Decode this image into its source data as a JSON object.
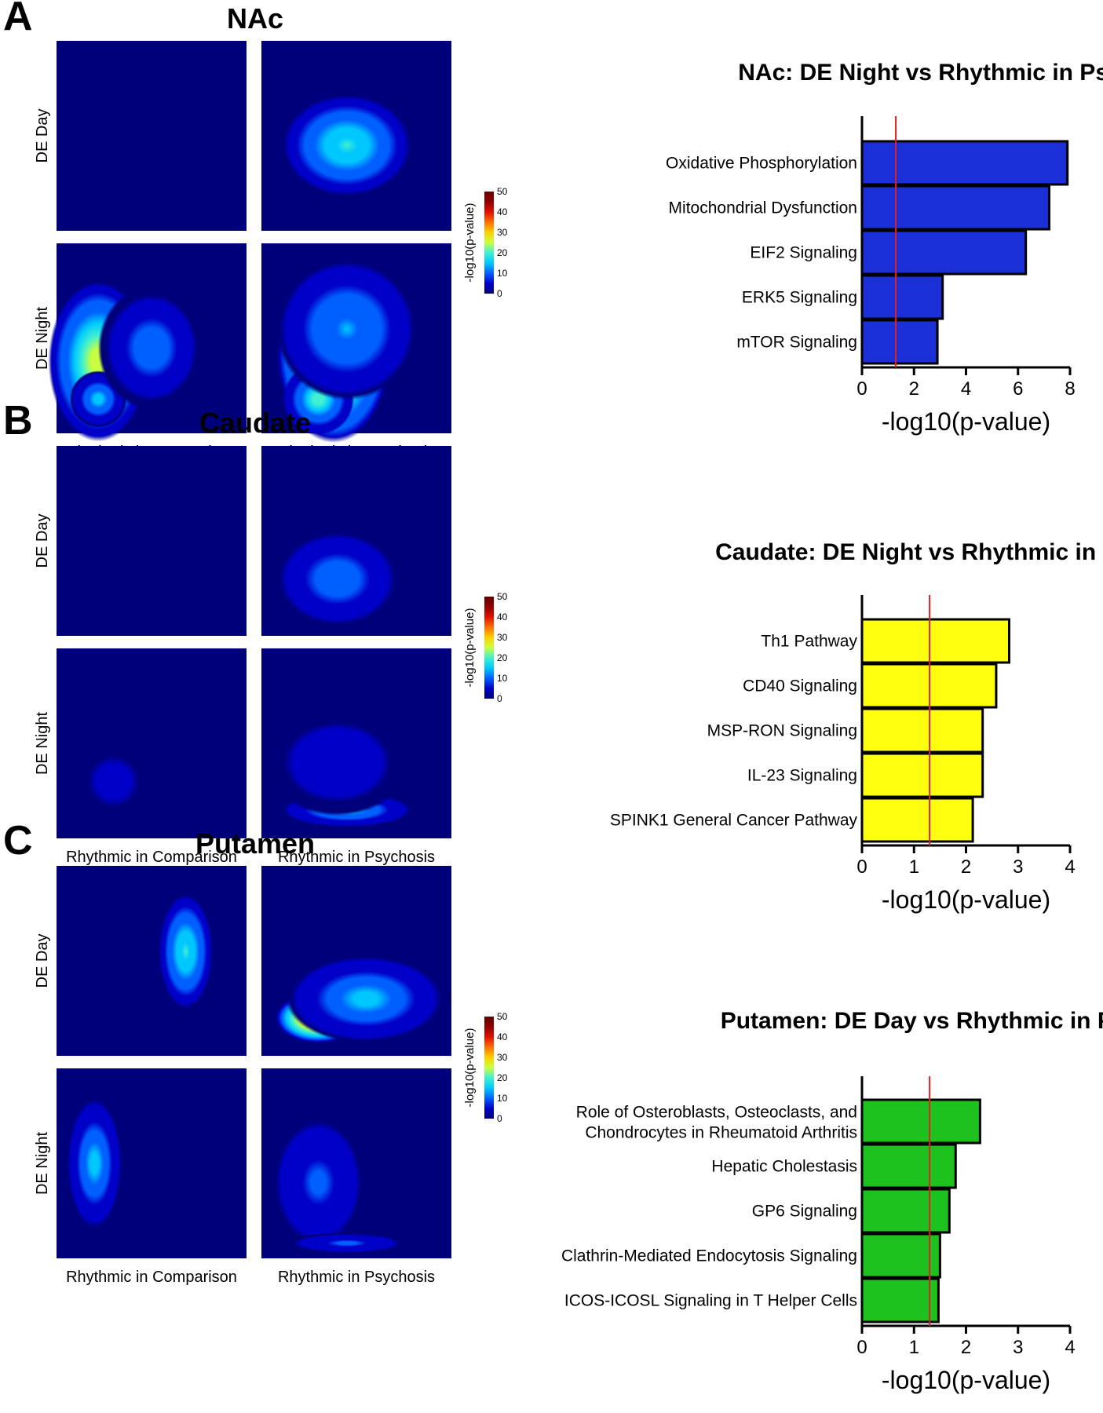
{
  "palette": {
    "heat_stops": [
      "#00007a",
      "#0000c8",
      "#0060ff",
      "#00c8ff",
      "#40f0d0",
      "#c8ff40",
      "#ffd000",
      "#ff7000",
      "#e01000",
      "#900000",
      "#600000"
    ],
    "threshold_line": "#e02020",
    "bar_colors": [
      "#1a2fd6",
      "#ffff10",
      "#1ec21e"
    ]
  },
  "chart_data": [
    {
      "panel": "A",
      "type": "heatmap",
      "region": "NAc",
      "row_labels": [
        "DE Day",
        "DE Night"
      ],
      "col_labels": [
        "Rhythmic in Comparison",
        "Rhythmic in Psychosis"
      ],
      "colorbar": {
        "label": "-log10(p-value)",
        "ticks": [
          "0",
          "10",
          "20",
          "30",
          "40",
          "50"
        ],
        "range": [
          0,
          50
        ]
      },
      "cells": [
        {
          "row": 0,
          "col": 0,
          "blobs": []
        },
        {
          "row": 0,
          "col": 1,
          "blobs": [
            {
              "cx": 0.45,
              "cy": 0.55,
              "rx": 0.38,
              "ry": 0.3,
              "peak": 20
            }
          ]
        },
        {
          "row": 1,
          "col": 0,
          "blobs": [
            {
              "cx": 0.22,
              "cy": 0.62,
              "rx": 0.28,
              "ry": 0.45,
              "peak": 27
            },
            {
              "cx": 0.22,
              "cy": 0.82,
              "rx": 0.16,
              "ry": 0.16,
              "peak": 16
            },
            {
              "cx": 0.5,
              "cy": 0.55,
              "rx": 0.3,
              "ry": 0.35,
              "peak": 11
            }
          ]
        },
        {
          "row": 1,
          "col": 1,
          "blobs": [
            {
              "cx": 0.38,
              "cy": 0.58,
              "rx": 0.32,
              "ry": 0.5,
              "peak": 38
            },
            {
              "cx": 0.3,
              "cy": 0.82,
              "rx": 0.2,
              "ry": 0.2,
              "peak": 22
            },
            {
              "cx": 0.45,
              "cy": 0.45,
              "rx": 0.4,
              "ry": 0.4,
              "peak": 14
            }
          ]
        }
      ]
    },
    {
      "panel": "A",
      "type": "bar",
      "orientation": "horizontal",
      "title": "NAc: DE Night vs Rhythmic in Psychosis",
      "categories": [
        "Oxidative Phosphorylation",
        "Mitochondrial Dysfunction",
        "EIF2 Signaling",
        "ERK5 Signaling",
        "mTOR Signaling"
      ],
      "values": [
        7.9,
        7.2,
        6.3,
        3.1,
        2.9
      ],
      "xlim": [
        0,
        8
      ],
      "xticks": [
        "0",
        "2",
        "4",
        "6",
        "8"
      ],
      "xlabel": "-log10(p-value)",
      "threshold": 1.3
    },
    {
      "panel": "B",
      "type": "heatmap",
      "region": "Caudate",
      "row_labels": [
        "DE Day",
        "DE Night"
      ],
      "col_labels": [
        "Rhythmic in Comparison",
        "Rhythmic in Psychosis"
      ],
      "colorbar": {
        "label": "-log10(p-value)",
        "ticks": [
          "0",
          "10",
          "20",
          "30",
          "40",
          "50"
        ],
        "range": [
          0,
          50
        ]
      },
      "cells": [
        {
          "row": 0,
          "col": 0,
          "blobs": []
        },
        {
          "row": 0,
          "col": 1,
          "blobs": [
            {
              "cx": 0.4,
              "cy": 0.7,
              "rx": 0.38,
              "ry": 0.3,
              "peak": 11
            }
          ]
        },
        {
          "row": 1,
          "col": 0,
          "blobs": [
            {
              "cx": 0.3,
              "cy": 0.7,
              "rx": 0.3,
              "ry": 0.3,
              "peak": 4
            }
          ]
        },
        {
          "row": 1,
          "col": 1,
          "blobs": [
            {
              "cx": 0.45,
              "cy": 0.85,
              "rx": 0.38,
              "ry": 0.1,
              "peak": 16
            },
            {
              "cx": 0.4,
              "cy": 0.6,
              "rx": 0.4,
              "ry": 0.3,
              "peak": 7
            }
          ]
        }
      ]
    },
    {
      "panel": "B",
      "type": "bar",
      "orientation": "horizontal",
      "title": "Caudate: DE Night vs Rhythmic in Psychosis",
      "categories": [
        "Th1 Pathway",
        "CD40 Signaling",
        "MSP-RON Signaling",
        "IL-23 Signaling",
        "SPINK1 General Cancer Pathway"
      ],
      "values": [
        2.83,
        2.58,
        2.32,
        2.32,
        2.13
      ],
      "xlim": [
        0,
        4
      ],
      "xticks": [
        "0",
        "1",
        "2",
        "3",
        "4"
      ],
      "xlabel": "-log10(p-value)",
      "threshold": 1.3
    },
    {
      "panel": "C",
      "type": "heatmap",
      "region": "Putamen",
      "row_labels": [
        "DE Day",
        "DE Night"
      ],
      "col_labels": [
        "Rhythmic in Comparison",
        "Rhythmic in Psychosis"
      ],
      "colorbar": {
        "label": "-log10(p-value)",
        "ticks": [
          "0",
          "10",
          "20",
          "30",
          "40",
          "50"
        ],
        "range": [
          0,
          50
        ]
      },
      "cells": [
        {
          "row": 0,
          "col": 0,
          "blobs": [
            {
              "cx": 0.68,
              "cy": 0.45,
              "rx": 0.16,
              "ry": 0.34,
              "peak": 20
            }
          ]
        },
        {
          "row": 0,
          "col": 1,
          "blobs": [
            {
              "cx": 0.3,
              "cy": 0.8,
              "rx": 0.24,
              "ry": 0.14,
              "peak": 46
            },
            {
              "cx": 0.55,
              "cy": 0.7,
              "rx": 0.45,
              "ry": 0.25,
              "peak": 16
            }
          ]
        },
        {
          "row": 1,
          "col": 0,
          "blobs": [
            {
              "cx": 0.2,
              "cy": 0.5,
              "rx": 0.16,
              "ry": 0.38,
              "peak": 15
            }
          ]
        },
        {
          "row": 1,
          "col": 1,
          "blobs": [
            {
              "cx": 0.3,
              "cy": 0.6,
              "rx": 0.28,
              "ry": 0.4,
              "peak": 9
            },
            {
              "cx": 0.45,
              "cy": 0.92,
              "rx": 0.35,
              "ry": 0.06,
              "peak": 9
            }
          ]
        }
      ]
    },
    {
      "panel": "C",
      "type": "bar",
      "orientation": "horizontal",
      "title": "Putamen: DE Day vs Rhythmic in Psychosis",
      "categories": [
        "Role of Osteroblasts, Osteoclasts, and\nChondrocytes in Rheumatoid Arthritis",
        "Hepatic Cholestasis",
        "GP6 Signaling",
        "Clathrin-Mediated Endocytosis Signaling",
        "ICOS-ICOSL Signaling in T Helper Cells"
      ],
      "values": [
        2.27,
        1.8,
        1.68,
        1.5,
        1.47
      ],
      "xlim": [
        0,
        4
      ],
      "xticks": [
        "0",
        "1",
        "2",
        "3",
        "4"
      ],
      "xlabel": "-log10(p-value)",
      "threshold": 1.3
    }
  ]
}
